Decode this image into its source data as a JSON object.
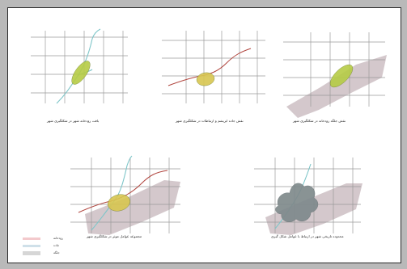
{
  "diagrams": [
    {
      "caption": "بافت رودخانه شهر در شکلگیری شهر",
      "layers": {
        "grid": true,
        "stream": true,
        "road": false,
        "plain": false,
        "core": "green"
      }
    },
    {
      "caption": "نقش جاده ابریشم و ارتباطات در شکلگیری شهر",
      "layers": {
        "grid": true,
        "stream": false,
        "road": true,
        "plain": false,
        "core": "yellow"
      }
    },
    {
      "caption": "نقش جلگه رودخانه در شکلگیری شهر",
      "layers": {
        "grid": true,
        "stream": false,
        "road": false,
        "plain": true,
        "core": "green"
      }
    },
    {
      "caption": "مجموعه عوامل موثر در شکلگیری شهر",
      "layers": {
        "grid": true,
        "stream": true,
        "road": true,
        "plain": true,
        "core": "yellow"
      }
    },
    {
      "caption": "محدوده تاریخی شهر در ارتباط با عوامل شکل گیری",
      "layers": {
        "grid": true,
        "stream": true,
        "road": false,
        "plain": true,
        "core": "gray"
      }
    }
  ],
  "legend": [
    {
      "label": "رودخانه",
      "swatch": "stream"
    },
    {
      "label": "جاده",
      "swatch": "road"
    },
    {
      "label": "جلگه",
      "swatch": "plain"
    }
  ],
  "colors": {
    "grid": "#9a9a9a",
    "stream": "#7fc6c9",
    "road": "#b0443d",
    "plain": "#cdbec3",
    "core_green": "#b6cc45",
    "core_yellow": "#d8c650",
    "core_gray": "#7f8a8c"
  }
}
